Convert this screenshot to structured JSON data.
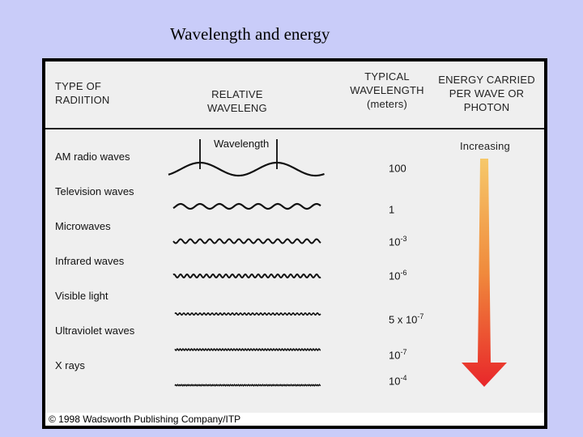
{
  "title": "Wavelength and energy",
  "headers": {
    "type_line1": "TYPE OF",
    "type_line2": "RADIITION",
    "rel_line1": "RELATIVE",
    "rel_line2": "WAVELENG",
    "typ_line1": "TYPICAL",
    "typ_line2": "WAVELENGTH",
    "typ_line3": "(meters)",
    "energy_line1": "ENERGY CARRIED",
    "energy_line2": "PER WAVE OR",
    "energy_line3": "PHOTON"
  },
  "wavelength_label": "Wavelength",
  "energy_label": "Increasing",
  "rows": [
    {
      "name": "AM radio waves",
      "base": "100",
      "exp": ""
    },
    {
      "name": "Television waves",
      "base": "1",
      "exp": ""
    },
    {
      "name": "Microwaves",
      "base": "10",
      "exp": "-3"
    },
    {
      "name": "Infrared waves",
      "base": "10",
      "exp": "-6"
    },
    {
      "name": "Visible light",
      "base": "5 x 10",
      "exp": "-7"
    },
    {
      "name": "Ultraviolet waves",
      "base": "10",
      "exp": "-7"
    },
    {
      "name": "X rays",
      "base": "10",
      "exp": "-4"
    }
  ],
  "copyright": "© 1998 Wadsworth Publishing Company/ITP",
  "colors": {
    "background": "#c9ccf9",
    "arrow_top": "#f6c86a",
    "arrow_bottom": "#e8262a"
  }
}
